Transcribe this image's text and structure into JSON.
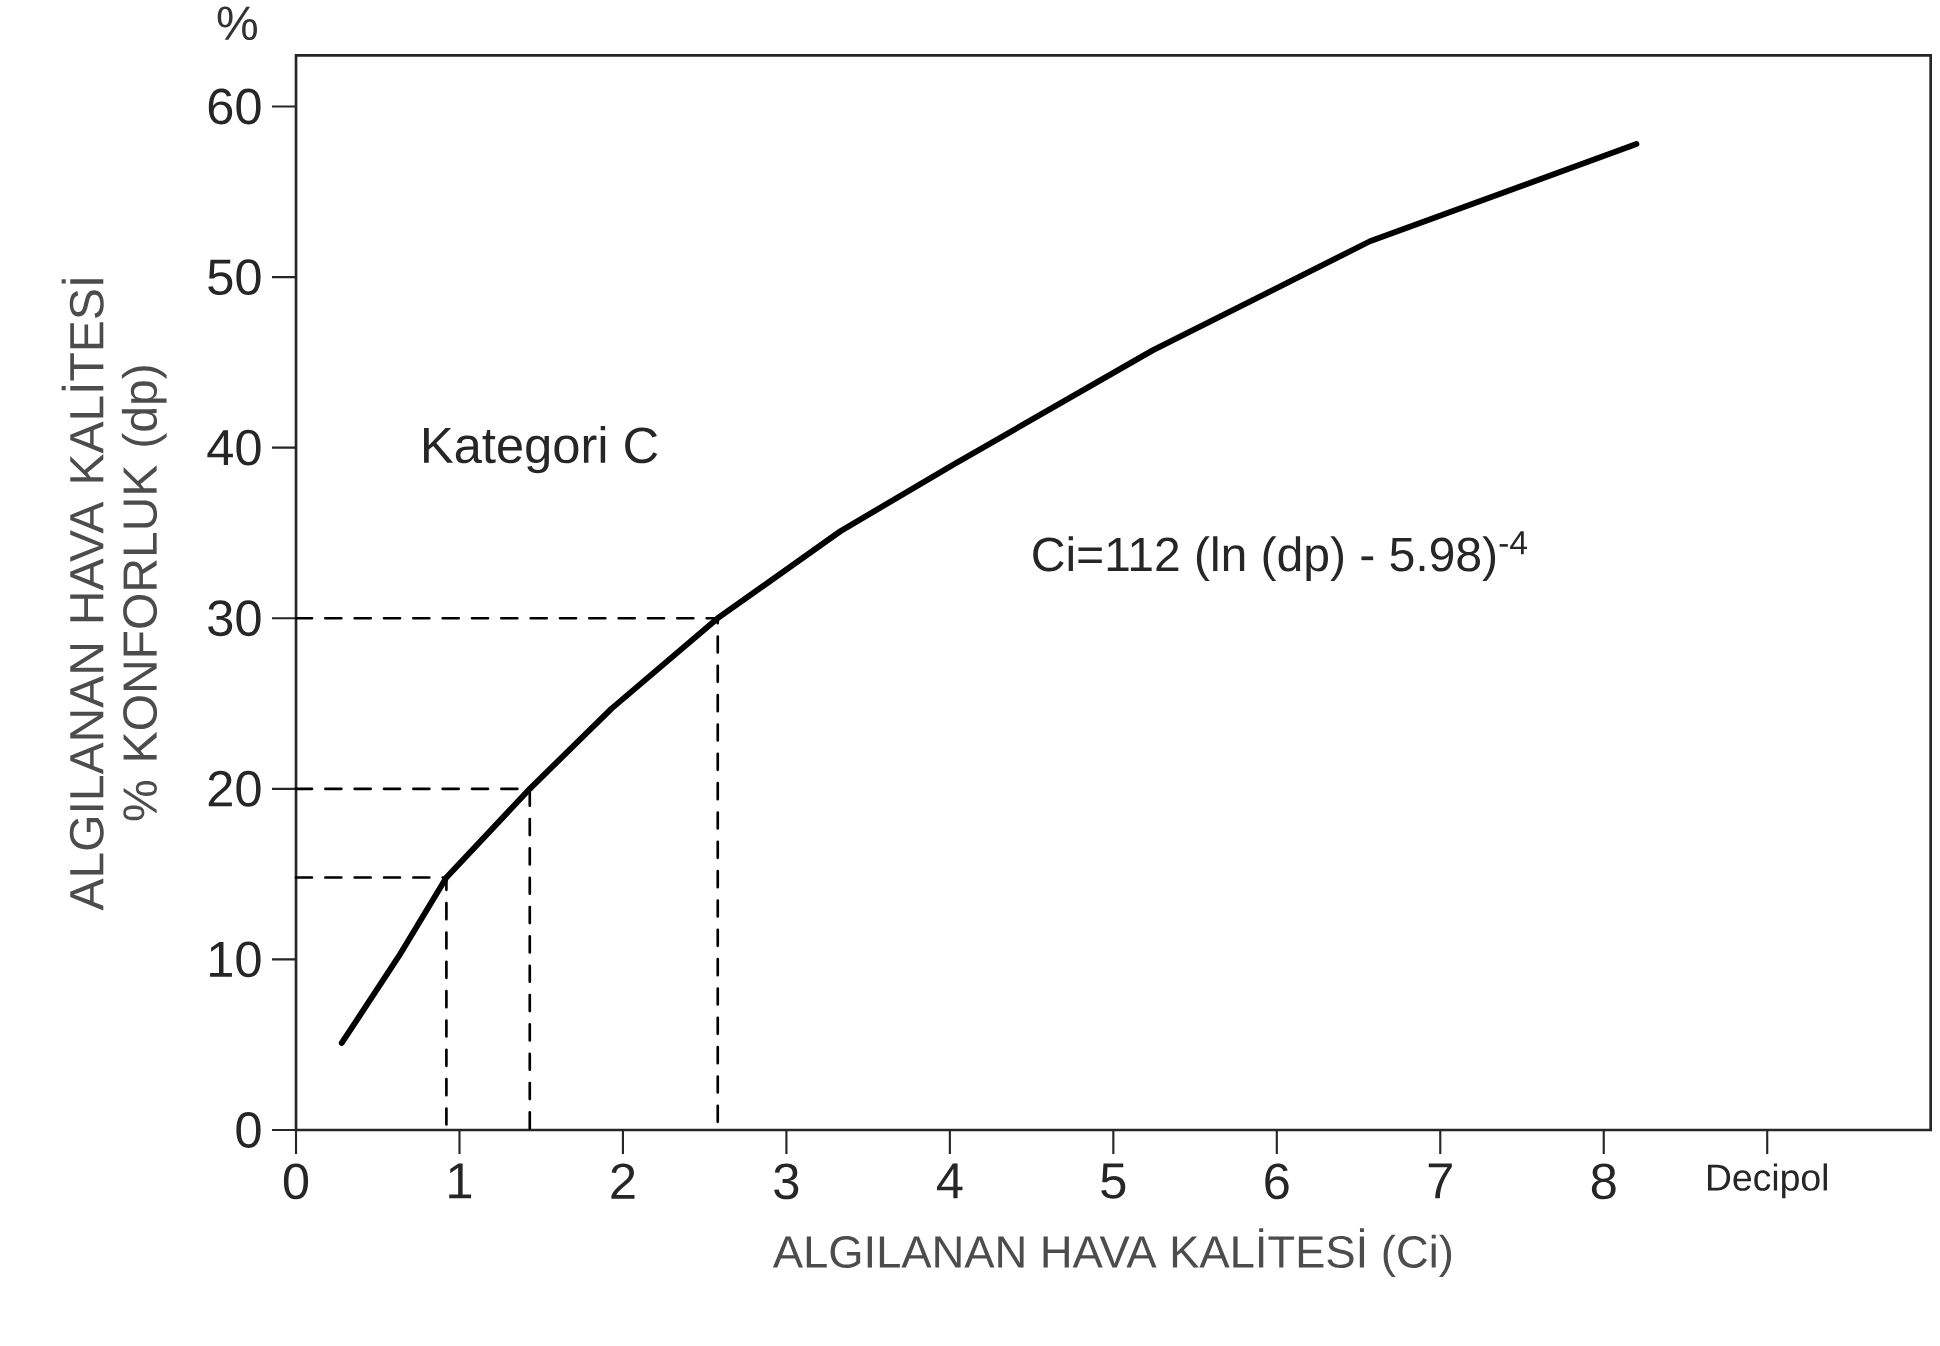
{
  "chart_data": {
    "type": "line",
    "xlabel": "ALGILANAN HAVA KALİTESİ (Ci)",
    "ylabel": "ALGILANAN HAVA KALİTESİ % KONFORLUK (dp)",
    "annotations": [
      "%",
      "Kategori C",
      "Ci=112 (ln (dp) - 5.98)$^{-4}$"
    ],
    "xlim": [
      0,
      10
    ],
    "ylim": [
      0,
      63
    ],
    "xticks": [
      0,
      1,
      2,
      3,
      4,
      5,
      6,
      7,
      8,
      {
        "value": 9,
        "label": "Decipol"
      }
    ],
    "yticks": [
      0,
      10,
      20,
      30,
      40,
      50,
      60
    ],
    "series": [
      {
        "color": "#000000",
        "x": [
          0.28,
          0.63,
          0.92,
          1.43,
          1.93,
          2.58,
          3.33,
          4.02,
          5.24,
          6.57,
          8.2
        ],
        "values": [
          5.1,
          10.2,
          14.8,
          20,
          24.7,
          30,
          35.1,
          39,
          45.7,
          52.1,
          57.8
        ]
      },
      {
        "color": "#000000",
        "line_style": "dashed",
        "x": [
          0,
          0.92,
          0.92
        ],
        "values": [
          14.8,
          14.8,
          0
        ]
      },
      {
        "color": "#000000",
        "line_style": "dashed",
        "x": [
          0,
          1.43,
          1.43
        ],
        "values": [
          20,
          20,
          0
        ]
      },
      {
        "color": "#000000",
        "line_style": "dashed",
        "x": [
          0,
          2.58,
          2.58
        ],
        "values": [
          30,
          30,
          0
        ]
      }
    ]
  }
}
